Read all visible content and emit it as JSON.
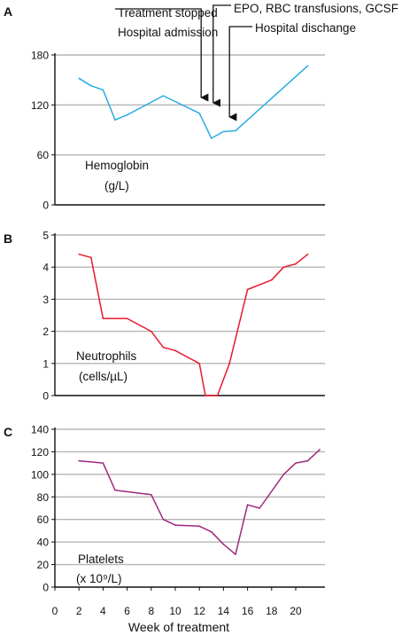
{
  "chart_data": [
    {
      "type": "line",
      "panel_label": "A",
      "name_label": "Hemoglobin",
      "unit_label": "(g/L)",
      "ylim": [
        0,
        180
      ],
      "yticks": [
        0,
        60,
        120,
        180
      ],
      "grid": true,
      "color": "#29abe2",
      "x": [
        2,
        3,
        4,
        5,
        6,
        9,
        12,
        13,
        14,
        15,
        21
      ],
      "values": [
        152,
        143,
        138,
        102,
        108,
        131,
        110,
        80,
        88,
        89,
        167
      ]
    },
    {
      "type": "line",
      "panel_label": "B",
      "name_label": "Neutrophils",
      "unit_label": "(cells/µL)",
      "ylim": [
        0,
        5
      ],
      "yticks": [
        0,
        1,
        2,
        3,
        4,
        5
      ],
      "grid": true,
      "color": "#e8192c",
      "x": [
        2,
        3,
        4,
        6,
        8,
        9,
        10,
        11,
        12,
        12.5,
        13.5,
        14.5,
        16,
        18,
        19,
        20,
        21
      ],
      "values": [
        4.4,
        4.3,
        2.4,
        2.4,
        2.0,
        1.5,
        1.4,
        1.2,
        1.0,
        0.0,
        0.0,
        1.0,
        3.3,
        3.6,
        4.0,
        4.1,
        4.4
      ]
    },
    {
      "type": "line",
      "panel_label": "C",
      "name_label": "Platelets",
      "unit_label": "(x 10⁹/L)",
      "ylim": [
        0,
        140
      ],
      "yticks": [
        0,
        20,
        40,
        60,
        80,
        100,
        120,
        140
      ],
      "grid": true,
      "color": "#a0287d",
      "x": [
        2,
        3,
        4,
        5,
        8,
        9,
        10,
        12,
        13,
        14,
        15,
        16,
        17,
        19,
        20,
        21,
        22
      ],
      "values": [
        112,
        111,
        110,
        86,
        82,
        60,
        55,
        54,
        49,
        38,
        29,
        73,
        70,
        100,
        110,
        112,
        122
      ],
      "xlabel": "Week of treatment",
      "xticks": [
        0,
        2,
        4,
        6,
        8,
        10,
        12,
        14,
        16,
        18,
        20
      ]
    }
  ],
  "annotations": [
    {
      "line1": "Treatment stopped",
      "line2": "Hospital admission",
      "week": 12
    },
    {
      "line1": "EPO, RBC transfusions, GCSF",
      "week": 13
    },
    {
      "line1": "Hospital dischange",
      "week": 14.5
    }
  ]
}
